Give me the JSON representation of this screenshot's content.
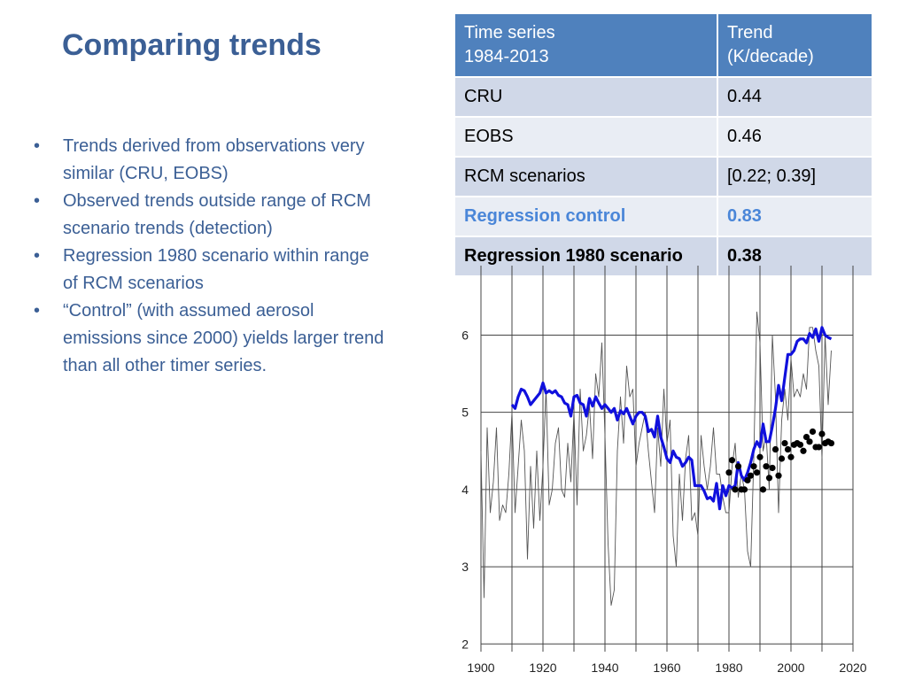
{
  "slide": {
    "title": "Comparing trends",
    "bullets": [
      "Trends derived from observations very similar (CRU, EOBS)",
      "Observed trends outside range of RCM scenario trends (detection)",
      "Regression 1980 scenario within range of RCM scenarios",
      "“Control” (with assumed aerosol emissions since 2000) yields larger trend than all other timer series."
    ],
    "bullet_char": "•"
  },
  "table": {
    "headers": [
      "Time series\n1984-2013",
      "Trend\n(K/decade)"
    ],
    "rows": [
      [
        "CRU",
        "0.44"
      ],
      [
        "EOBS",
        "0.46"
      ],
      [
        "RCM scenarios",
        "[0.22; 0.39]"
      ],
      [
        "Regression control",
        "0.83"
      ],
      [
        "Regression 1980 scenario",
        "0.38"
      ]
    ]
  },
  "colors": {
    "title_text": "#3b5f95",
    "table_header": "#4f81bd",
    "row_dark": "#d0d8e8",
    "row_light": "#e9edf4",
    "highlight_text": "#4a86d8",
    "blue_series": "#1010dd",
    "grey_series": "#555555",
    "dots": "#000000"
  },
  "chart_data": {
    "type": "line",
    "xlim": [
      1900,
      2020
    ],
    "ylim": [
      1.9,
      6.9
    ],
    "xticks": [
      1900,
      1920,
      1940,
      1960,
      1980,
      2000,
      2020
    ],
    "yticks": [
      2,
      3,
      4,
      5,
      6
    ],
    "grid": true,
    "series": [
      {
        "style": "thin-line",
        "color": "#555555",
        "points": [
          [
            1900,
            4.5
          ],
          [
            1901,
            2.6
          ],
          [
            1902,
            4.8
          ],
          [
            1903,
            3.7
          ],
          [
            1904,
            4.1
          ],
          [
            1905,
            4.8
          ],
          [
            1906,
            3.6
          ],
          [
            1907,
            3.8
          ],
          [
            1908,
            3.7
          ],
          [
            1909,
            4.2
          ],
          [
            1910,
            5.0
          ],
          [
            1911,
            3.7
          ],
          [
            1912,
            4.3
          ],
          [
            1913,
            4.9
          ],
          [
            1914,
            4.5
          ],
          [
            1915,
            3.1
          ],
          [
            1916,
            4.3
          ],
          [
            1917,
            3.5
          ],
          [
            1918,
            4.5
          ],
          [
            1919,
            3.6
          ],
          [
            1920,
            4.3
          ],
          [
            1921,
            5.3
          ],
          [
            1922,
            3.8
          ],
          [
            1923,
            4.0
          ],
          [
            1924,
            4.6
          ],
          [
            1925,
            4.8
          ],
          [
            1926,
            4.0
          ],
          [
            1927,
            3.9
          ],
          [
            1928,
            4.6
          ],
          [
            1929,
            4.1
          ],
          [
            1930,
            5.0
          ],
          [
            1931,
            3.8
          ],
          [
            1932,
            5.3
          ],
          [
            1933,
            4.5
          ],
          [
            1934,
            4.7
          ],
          [
            1935,
            5.1
          ],
          [
            1936,
            4.4
          ],
          [
            1937,
            5.5
          ],
          [
            1938,
            5.2
          ],
          [
            1939,
            5.9
          ],
          [
            1940,
            4.7
          ],
          [
            1941,
            3.3
          ],
          [
            1942,
            2.5
          ],
          [
            1943,
            2.7
          ],
          [
            1944,
            4.5
          ],
          [
            1945,
            5.2
          ],
          [
            1946,
            4.6
          ],
          [
            1947,
            5.6
          ],
          [
            1948,
            5.2
          ],
          [
            1949,
            5.3
          ],
          [
            1950,
            4.3
          ],
          [
            1951,
            4.6
          ],
          [
            1952,
            4.8
          ],
          [
            1953,
            5.0
          ],
          [
            1954,
            4.5
          ],
          [
            1955,
            4.1
          ],
          [
            1956,
            3.7
          ],
          [
            1957,
            4.8
          ],
          [
            1958,
            4.3
          ],
          [
            1959,
            5.3
          ],
          [
            1960,
            4.6
          ],
          [
            1961,
            4.9
          ],
          [
            1962,
            3.4
          ],
          [
            1963,
            3.0
          ],
          [
            1964,
            4.2
          ],
          [
            1965,
            3.6
          ],
          [
            1966,
            4.4
          ],
          [
            1967,
            4.7
          ],
          [
            1968,
            3.6
          ],
          [
            1969,
            3.7
          ],
          [
            1970,
            3.4
          ],
          [
            1971,
            4.7
          ],
          [
            1972,
            4.3
          ],
          [
            1973,
            4.0
          ],
          [
            1974,
            4.3
          ],
          [
            1975,
            4.8
          ],
          [
            1976,
            4.2
          ],
          [
            1977,
            4.2
          ],
          [
            1978,
            3.9
          ],
          [
            1979,
            3.7
          ],
          [
            1980,
            3.7
          ],
          [
            1981,
            4.3
          ],
          [
            1982,
            4.6
          ],
          [
            1983,
            3.9
          ],
          [
            1984,
            4.2
          ],
          [
            1985,
            4.0
          ],
          [
            1986,
            3.2
          ],
          [
            1987,
            3.0
          ],
          [
            1988,
            4.4
          ],
          [
            1989,
            6.3
          ],
          [
            1990,
            5.9
          ],
          [
            1991,
            4.5
          ],
          [
            1992,
            4.7
          ],
          [
            1993,
            4.0
          ],
          [
            1994,
            6.0
          ],
          [
            1995,
            5.2
          ],
          [
            1996,
            3.7
          ],
          [
            1997,
            4.9
          ],
          [
            1998,
            5.3
          ],
          [
            1999,
            4.9
          ],
          [
            2000,
            5.7
          ],
          [
            2001,
            5.2
          ],
          [
            2002,
            5.3
          ],
          [
            2003,
            5.2
          ],
          [
            2004,
            5.5
          ],
          [
            2005,
            5.3
          ],
          [
            2006,
            6.1
          ],
          [
            2007,
            6.1
          ],
          [
            2008,
            5.8
          ],
          [
            2009,
            5.6
          ],
          [
            2010,
            4.4
          ],
          [
            2011,
            6.0
          ],
          [
            2012,
            5.1
          ],
          [
            2013,
            5.8
          ]
        ]
      },
      {
        "style": "thick-line",
        "color": "#1010dd",
        "points": [
          [
            1910,
            5.1
          ],
          [
            1911,
            5.05
          ],
          [
            1912,
            5.2
          ],
          [
            1913,
            5.3
          ],
          [
            1914,
            5.28
          ],
          [
            1915,
            5.2
          ],
          [
            1916,
            5.1
          ],
          [
            1917,
            5.15
          ],
          [
            1918,
            5.2
          ],
          [
            1919,
            5.25
          ],
          [
            1920,
            5.38
          ],
          [
            1921,
            5.25
          ],
          [
            1922,
            5.28
          ],
          [
            1923,
            5.25
          ],
          [
            1924,
            5.28
          ],
          [
            1925,
            5.22
          ],
          [
            1926,
            5.2
          ],
          [
            1927,
            5.12
          ],
          [
            1928,
            5.1
          ],
          [
            1929,
            4.95
          ],
          [
            1930,
            5.2
          ],
          [
            1931,
            5.22
          ],
          [
            1932,
            5.12
          ],
          [
            1933,
            5.1
          ],
          [
            1934,
            4.95
          ],
          [
            1935,
            5.18
          ],
          [
            1936,
            5.08
          ],
          [
            1937,
            5.2
          ],
          [
            1938,
            5.12
          ],
          [
            1939,
            5.05
          ],
          [
            1940,
            5.1
          ],
          [
            1941,
            5.05
          ],
          [
            1942,
            5.0
          ],
          [
            1943,
            5.05
          ],
          [
            1944,
            4.9
          ],
          [
            1945,
            5.02
          ],
          [
            1946,
            4.98
          ],
          [
            1947,
            5.05
          ],
          [
            1948,
            4.95
          ],
          [
            1949,
            4.85
          ],
          [
            1950,
            4.95
          ],
          [
            1951,
            5.0
          ],
          [
            1952,
            5.0
          ],
          [
            1953,
            4.95
          ],
          [
            1954,
            4.75
          ],
          [
            1955,
            4.78
          ],
          [
            1956,
            4.68
          ],
          [
            1957,
            4.95
          ],
          [
            1958,
            4.68
          ],
          [
            1959,
            4.55
          ],
          [
            1960,
            4.4
          ],
          [
            1961,
            4.35
          ],
          [
            1962,
            4.5
          ],
          [
            1963,
            4.42
          ],
          [
            1964,
            4.4
          ],
          [
            1965,
            4.3
          ],
          [
            1966,
            4.35
          ],
          [
            1967,
            4.42
          ],
          [
            1968,
            4.38
          ],
          [
            1969,
            4.05
          ],
          [
            1970,
            4.05
          ],
          [
            1971,
            4.05
          ],
          [
            1972,
            3.98
          ],
          [
            1973,
            3.88
          ],
          [
            1974,
            3.9
          ],
          [
            1975,
            3.85
          ],
          [
            1976,
            4.08
          ],
          [
            1977,
            3.75
          ],
          [
            1978,
            4.05
          ],
          [
            1979,
            3.92
          ],
          [
            1980,
            4.05
          ],
          [
            1981,
            4.02
          ],
          [
            1982,
            4.05
          ],
          [
            1983,
            4.35
          ],
          [
            1984,
            4.18
          ],
          [
            1985,
            4.12
          ],
          [
            1986,
            4.22
          ],
          [
            1987,
            4.35
          ],
          [
            1988,
            4.52
          ],
          [
            1989,
            4.62
          ],
          [
            1990,
            4.55
          ],
          [
            1991,
            4.85
          ],
          [
            1992,
            4.62
          ],
          [
            1993,
            4.62
          ],
          [
            1994,
            4.82
          ],
          [
            1995,
            5.05
          ],
          [
            1996,
            5.35
          ],
          [
            1997,
            5.15
          ],
          [
            1998,
            5.45
          ],
          [
            1999,
            5.75
          ],
          [
            2000,
            5.75
          ],
          [
            2001,
            5.8
          ],
          [
            2002,
            5.92
          ],
          [
            2003,
            5.95
          ],
          [
            2004,
            5.95
          ],
          [
            2005,
            5.9
          ],
          [
            2006,
            6.02
          ],
          [
            2007,
            5.97
          ],
          [
            2008,
            6.08
          ],
          [
            2009,
            5.92
          ],
          [
            2010,
            6.1
          ],
          [
            2011,
            6.0
          ],
          [
            2012,
            5.97
          ],
          [
            2013,
            5.95
          ]
        ]
      },
      {
        "style": "dots",
        "color": "#000000",
        "points": [
          [
            1980,
            4.22
          ],
          [
            1981,
            4.38
          ],
          [
            1982,
            4.0
          ],
          [
            1983,
            4.3
          ],
          [
            1984,
            4.0
          ],
          [
            1985,
            4.0
          ],
          [
            1986,
            4.12
          ],
          [
            1987,
            4.18
          ],
          [
            1988,
            4.3
          ],
          [
            1989,
            4.22
          ],
          [
            1990,
            4.42
          ],
          [
            1991,
            4.0
          ],
          [
            1992,
            4.3
          ],
          [
            1993,
            4.15
          ],
          [
            1994,
            4.28
          ],
          [
            1995,
            4.52
          ],
          [
            1996,
            4.18
          ],
          [
            1997,
            4.4
          ],
          [
            1998,
            4.6
          ],
          [
            1999,
            4.52
          ],
          [
            2000,
            4.42
          ],
          [
            2001,
            4.58
          ],
          [
            2002,
            4.6
          ],
          [
            2003,
            4.58
          ],
          [
            2004,
            4.5
          ],
          [
            2005,
            4.68
          ],
          [
            2006,
            4.62
          ],
          [
            2007,
            4.75
          ],
          [
            2008,
            4.55
          ],
          [
            2009,
            4.55
          ],
          [
            2010,
            4.72
          ],
          [
            2011,
            4.6
          ],
          [
            2012,
            4.62
          ],
          [
            2013,
            4.6
          ]
        ]
      }
    ]
  }
}
